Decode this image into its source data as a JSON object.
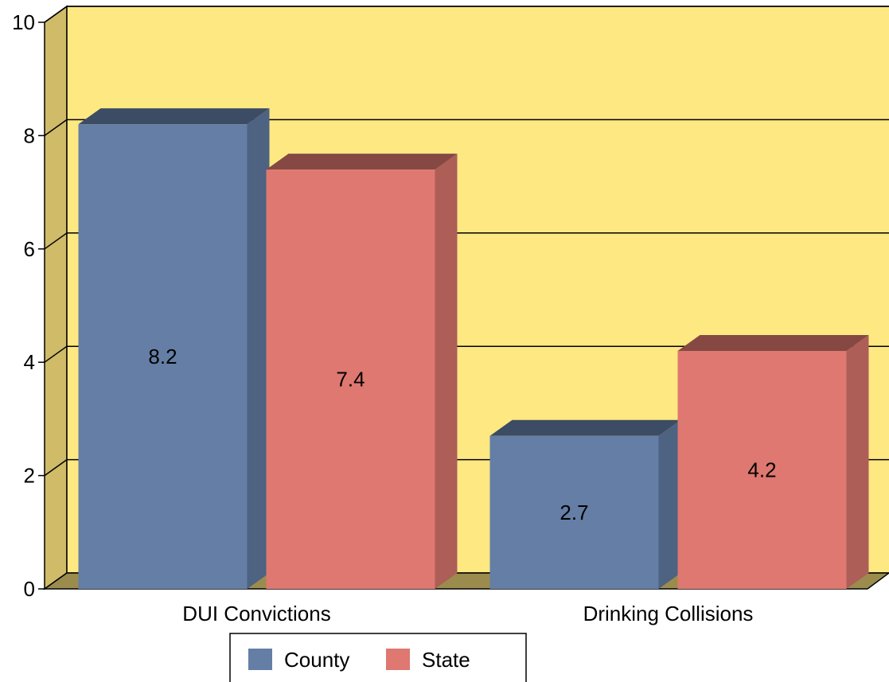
{
  "chart_data": {
    "type": "bar",
    "categories": [
      "DUI Convictions",
      "Drinking Collisions"
    ],
    "series": [
      {
        "name": "County",
        "values": [
          8.2,
          2.7
        ],
        "color": "#647ea6"
      },
      {
        "name": "State",
        "values": [
          7.4,
          4.2
        ],
        "color": "#de7870"
      }
    ],
    "ylim": [
      0,
      10
    ],
    "yticks": [
      "0",
      "2",
      "4",
      "6",
      "8",
      "10"
    ],
    "grid": true,
    "legend": "bottom",
    "style": "3d",
    "wall_color": "#fee882",
    "side_wall_color": "#cfbb68",
    "floor_color": "#9b8c4e"
  }
}
